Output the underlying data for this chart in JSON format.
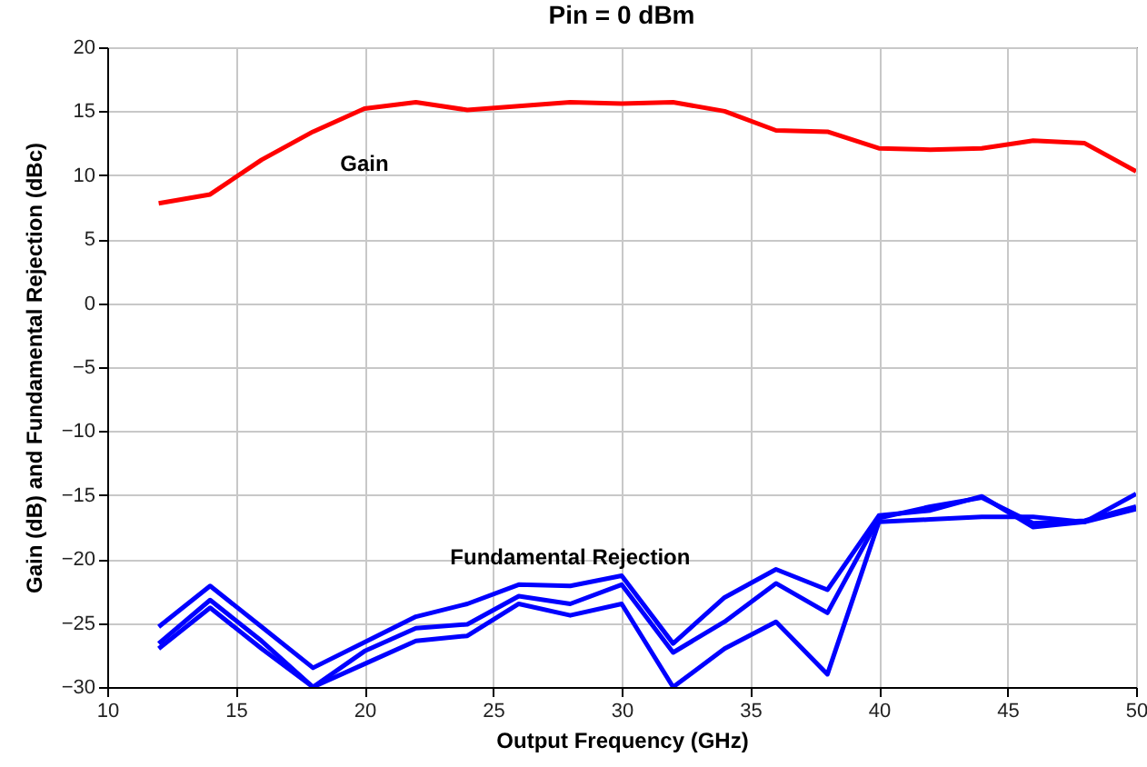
{
  "chart_data": {
    "type": "line",
    "title": "Pin = 0 dBm",
    "xlabel": "Output Frequency (GHz)",
    "ylabel": "Gain (dB) and Fundamental Rejection (dBc)",
    "x": [
      12,
      14,
      16,
      18,
      20,
      22,
      24,
      26,
      28,
      30,
      32,
      34,
      36,
      38,
      40,
      42,
      44,
      46,
      48,
      50
    ],
    "series": [
      {
        "name": "Gain",
        "color": "#ff0000",
        "values": [
          7.8,
          8.5,
          11.2,
          13.4,
          15.2,
          15.7,
          15.1,
          15.4,
          15.7,
          15.6,
          15.7,
          15.0,
          13.5,
          13.4,
          12.1,
          12.0,
          12.1,
          12.7,
          12.5,
          10.3
        ]
      },
      {
        "name": "Fundamental Rejection",
        "color": "#0000ff",
        "values": [
          -25.3,
          -22.1,
          -25.3,
          -28.5,
          -26.5,
          -24.5,
          -23.5,
          -22.0,
          -22.1,
          -21.3,
          -26.6,
          -23.0,
          -20.8,
          -22.4,
          -16.6,
          -16.2,
          -15.1,
          -17.5,
          -17.1,
          -14.9
        ]
      },
      {
        "color": "#0000ff",
        "values": [
          -26.6,
          -23.2,
          -26.4,
          -30,
          -27.2,
          -25.4,
          -25.1,
          -22.9,
          -23.5,
          -22.0,
          -27.3,
          -24.9,
          -21.9,
          -24.2,
          -16.8,
          -15.9,
          -15.2,
          -17.2,
          -17.0,
          -15.9
        ]
      },
      {
        "color": "#0000ff",
        "values": [
          -27.0,
          -23.8,
          -27.0,
          -30,
          -28.2,
          -26.4,
          -26.0,
          -23.5,
          -24.4,
          -23.5,
          -30,
          -27.0,
          -24.9,
          -29.0,
          -17.1,
          -16.9,
          -16.7,
          -16.7,
          -17.1,
          -16.1
        ]
      }
    ],
    "xlim": [
      10,
      50
    ],
    "xticks": [
      10,
      15,
      20,
      25,
      30,
      35,
      40,
      45,
      50
    ],
    "ylim": [
      -30,
      20
    ],
    "yticks": [
      -30,
      -25,
      -20,
      -15,
      -10,
      -5,
      0,
      5,
      10,
      15,
      20
    ],
    "grid": true,
    "legend": false,
    "marker": "none",
    "line_style": "solid"
  }
}
